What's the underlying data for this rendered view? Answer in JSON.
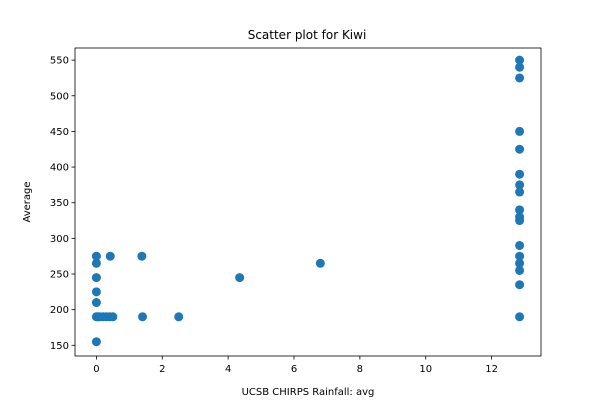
{
  "chart_data": {
    "type": "scatter",
    "title": "Scatter plot for Kiwi",
    "xlabel": "UCSB CHIRPS Rainfall: avg",
    "ylabel": "Average",
    "xlim": [
      -0.65,
      13.5
    ],
    "ylim": [
      135,
      567
    ],
    "xticks": [
      0,
      2,
      4,
      6,
      8,
      10,
      12
    ],
    "yticks": [
      150,
      200,
      250,
      300,
      350,
      400,
      450,
      500,
      550
    ],
    "grid": false,
    "marker_color": "#1f77b4",
    "points": [
      {
        "x": 0,
        "y": 155
      },
      {
        "x": 0,
        "y": 190
      },
      {
        "x": 0,
        "y": 210
      },
      {
        "x": 0,
        "y": 225
      },
      {
        "x": 0,
        "y": 245
      },
      {
        "x": 0,
        "y": 265
      },
      {
        "x": 0,
        "y": 275
      },
      {
        "x": 0.05,
        "y": 190
      },
      {
        "x": 0.1,
        "y": 190
      },
      {
        "x": 0.2,
        "y": 190
      },
      {
        "x": 0.3,
        "y": 190
      },
      {
        "x": 0.4,
        "y": 190
      },
      {
        "x": 0.5,
        "y": 190
      },
      {
        "x": 0.42,
        "y": 275
      },
      {
        "x": 1.38,
        "y": 275
      },
      {
        "x": 1.4,
        "y": 190
      },
      {
        "x": 2.5,
        "y": 190
      },
      {
        "x": 4.35,
        "y": 245
      },
      {
        "x": 6.8,
        "y": 265
      },
      {
        "x": 12.85,
        "y": 190
      },
      {
        "x": 12.85,
        "y": 235
      },
      {
        "x": 12.85,
        "y": 255
      },
      {
        "x": 12.85,
        "y": 265
      },
      {
        "x": 12.85,
        "y": 275
      },
      {
        "x": 12.85,
        "y": 290
      },
      {
        "x": 12.85,
        "y": 325
      },
      {
        "x": 12.85,
        "y": 330
      },
      {
        "x": 12.85,
        "y": 340
      },
      {
        "x": 12.85,
        "y": 365
      },
      {
        "x": 12.85,
        "y": 375
      },
      {
        "x": 12.85,
        "y": 390
      },
      {
        "x": 12.85,
        "y": 425
      },
      {
        "x": 12.85,
        "y": 450
      },
      {
        "x": 12.85,
        "y": 525
      },
      {
        "x": 12.85,
        "y": 540
      },
      {
        "x": 12.85,
        "y": 550
      }
    ]
  }
}
